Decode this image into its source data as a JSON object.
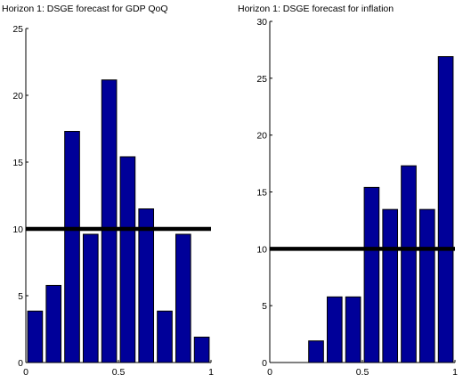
{
  "chart_data": [
    {
      "type": "bar",
      "title": "Horizon 1: DSGE forecast for GDP QoQ",
      "x": [
        0.05,
        0.15,
        0.25,
        0.35,
        0.45,
        0.55,
        0.65,
        0.75,
        0.85,
        0.95
      ],
      "values": [
        3.85,
        5.77,
        17.3,
        9.6,
        21.15,
        15.4,
        11.5,
        3.85,
        9.6,
        1.9
      ],
      "bar_width": 0.08,
      "reference_line": 10,
      "xlim": [
        0,
        1
      ],
      "ylim": [
        0,
        25
      ],
      "xticks": [
        0,
        0.5,
        1
      ],
      "xtick_labels": [
        "0",
        "0.5",
        "1"
      ],
      "yticks": [
        0,
        5,
        10,
        15,
        20,
        25
      ],
      "ytick_labels": [
        "0",
        "5",
        "10",
        "15",
        "20",
        "25"
      ],
      "xlabel": "",
      "ylabel": "",
      "bar_color": "#000099",
      "line_color": "#000000",
      "grid": false
    },
    {
      "type": "bar",
      "title": "Horizon 1: DSGE forecast for inflation",
      "x": [
        0.05,
        0.15,
        0.25,
        0.35,
        0.45,
        0.55,
        0.65,
        0.75,
        0.85,
        0.95
      ],
      "values": [
        0,
        0,
        1.9,
        5.77,
        5.77,
        15.4,
        13.46,
        17.3,
        13.46,
        26.9
      ],
      "bar_width": 0.08,
      "reference_line": 10,
      "xlim": [
        0,
        1
      ],
      "ylim": [
        0,
        30
      ],
      "xticks": [
        0,
        0.5,
        1
      ],
      "xtick_labels": [
        "0",
        "0.5",
        "1"
      ],
      "yticks": [
        0,
        5,
        10,
        15,
        20,
        25,
        30
      ],
      "ytick_labels": [
        "0",
        "5",
        "10",
        "15",
        "20",
        "25",
        "30"
      ],
      "xlabel": "",
      "ylabel": "",
      "bar_color": "#000099",
      "line_color": "#000000",
      "grid": false
    }
  ]
}
